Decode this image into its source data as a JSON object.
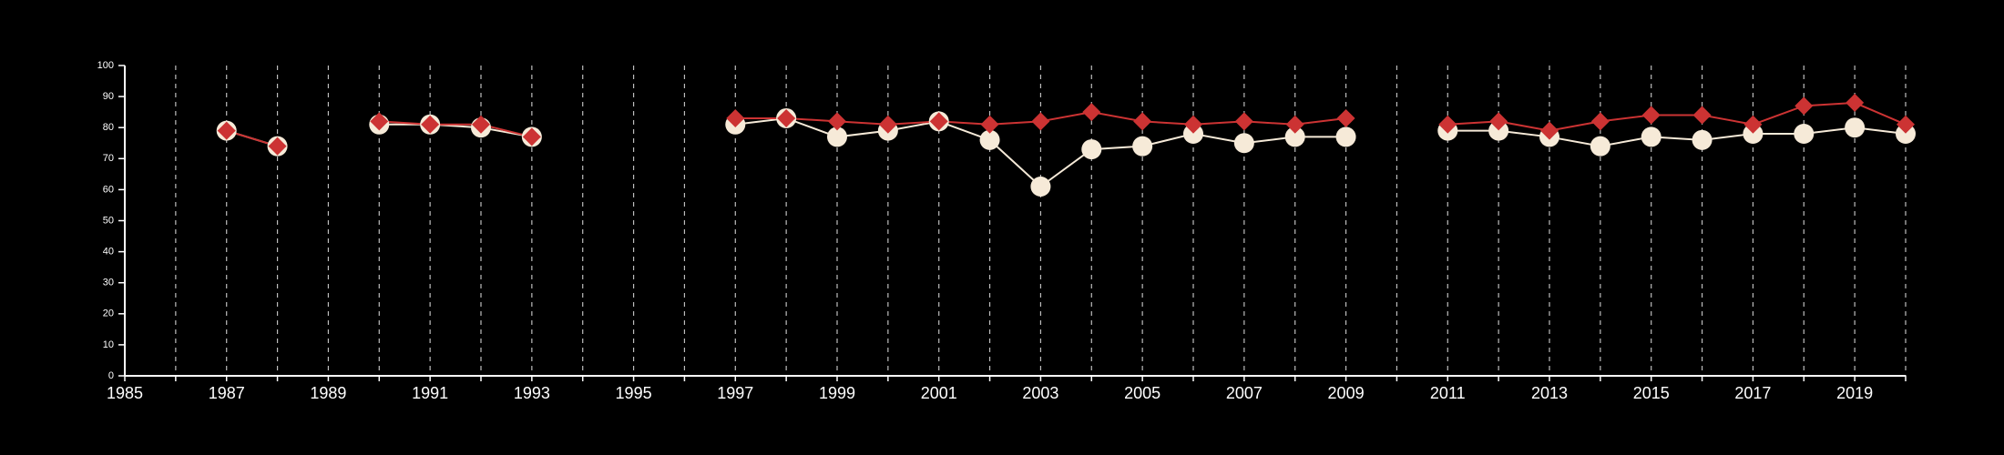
{
  "chart_data": {
    "type": "line",
    "title": "",
    "xlabel": "",
    "ylabel": "",
    "xlim": [
      1985,
      2020
    ],
    "ylim": [
      0,
      100
    ],
    "y_ticks": [
      0,
      10,
      20,
      30,
      40,
      50,
      60,
      70,
      80,
      90,
      100
    ],
    "x_ticks": [
      1985,
      1987,
      1989,
      1991,
      1993,
      1995,
      1997,
      1999,
      2001,
      2003,
      2005,
      2007,
      2009,
      2011,
      2013,
      2015,
      2017,
      2019
    ],
    "grid": "vertical dashed at every year",
    "legend": "none",
    "colors": {
      "background": "#000000",
      "axis": "#ffffff",
      "grid": "#bdbdbd",
      "series_cream": "#f6ead8",
      "series_red": "#cc3333"
    },
    "series": [
      {
        "marker": "circle",
        "color": "#f6ead8",
        "points": [
          [
            1987,
            79
          ],
          [
            1988,
            74
          ],
          [
            1990,
            81
          ],
          [
            1991,
            81
          ],
          [
            1992,
            80
          ],
          [
            1993,
            77
          ],
          [
            1997,
            81
          ],
          [
            1998,
            83
          ],
          [
            1999,
            77
          ],
          [
            2000,
            79
          ],
          [
            2001,
            82
          ],
          [
            2002,
            76
          ],
          [
            2003,
            61
          ],
          [
            2004,
            73
          ],
          [
            2005,
            74
          ],
          [
            2006,
            78
          ],
          [
            2007,
            75
          ],
          [
            2008,
            77
          ],
          [
            2009,
            77
          ],
          [
            2011,
            79
          ],
          [
            2012,
            79
          ],
          [
            2013,
            77
          ],
          [
            2014,
            74
          ],
          [
            2015,
            77
          ],
          [
            2016,
            76
          ],
          [
            2017,
            78
          ],
          [
            2018,
            78
          ],
          [
            2019,
            80
          ],
          [
            2020,
            78
          ]
        ]
      },
      {
        "marker": "diamond",
        "color": "#cc3333",
        "points": [
          [
            1987,
            79
          ],
          [
            1988,
            74
          ],
          [
            1990,
            82
          ],
          [
            1991,
            81
          ],
          [
            1992,
            81
          ],
          [
            1993,
            77
          ],
          [
            1997,
            83
          ],
          [
            1998,
            83
          ],
          [
            1999,
            82
          ],
          [
            2000,
            81
          ],
          [
            2001,
            82
          ],
          [
            2002,
            81
          ],
          [
            2003,
            82
          ],
          [
            2004,
            85
          ],
          [
            2005,
            82
          ],
          [
            2006,
            81
          ],
          [
            2007,
            82
          ],
          [
            2008,
            81
          ],
          [
            2009,
            83
          ],
          [
            2011,
            81
          ],
          [
            2012,
            82
          ],
          [
            2013,
            79
          ],
          [
            2014,
            82
          ],
          [
            2015,
            84
          ],
          [
            2016,
            84
          ],
          [
            2017,
            81
          ],
          [
            2018,
            87
          ],
          [
            2019,
            88
          ],
          [
            2020,
            81
          ]
        ]
      }
    ]
  }
}
